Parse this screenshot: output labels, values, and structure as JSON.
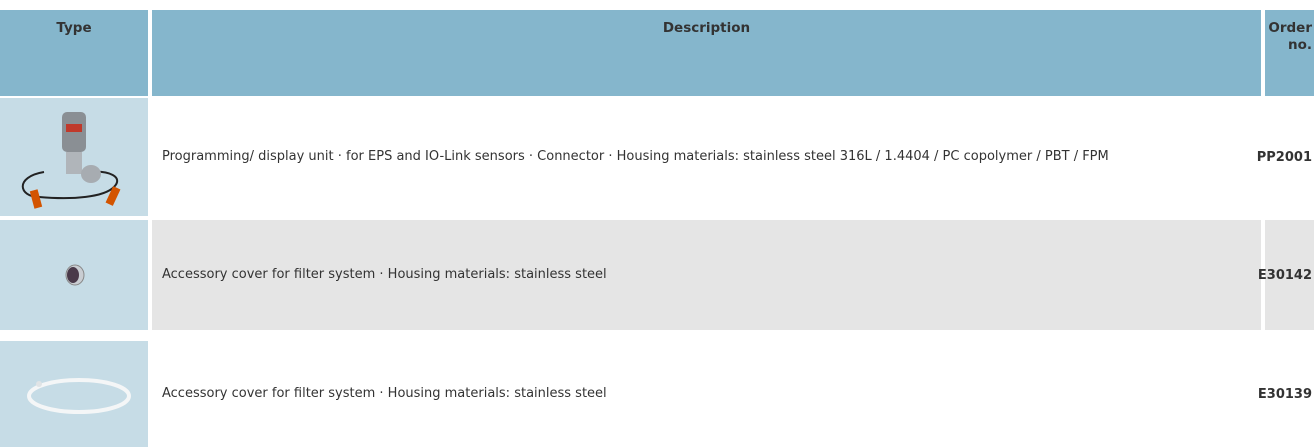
{
  "header": {
    "type": "Type",
    "description": "Description",
    "order": "Order no."
  },
  "rows": [
    {
      "description": "Programming/ display unit · for EPS and IO-Link sensors · Connector · Housing materials: stainless steel 316L / 1.4404 / PC copolymer / PBT / FPM",
      "order": "PP2001"
    },
    {
      "description": "Accessory cover for filter system · Housing materials: stainless steel",
      "order": "E30142"
    },
    {
      "description": "Accessory cover for filter system · Housing materials: stainless steel",
      "order": "E30139"
    }
  ]
}
